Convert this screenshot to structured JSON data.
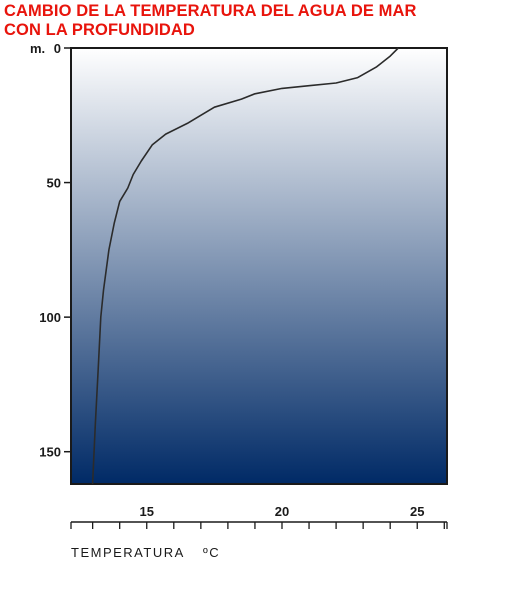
{
  "title": {
    "line1": "CAMBIO DE LA TEMPERATURA DEL AGUA DE MAR",
    "line2": "CON LA PROFUNDIDAD"
  },
  "colors": {
    "title": "#e8140c",
    "gradient_top": "#ffffff",
    "gradient_bottom": "#002a66",
    "curve": "#2b2b2b"
  },
  "chart_data": {
    "type": "line",
    "title": "CAMBIO DE LA TEMPERATURA DEL AGUA DE MAR CON LA PROFUNDIDAD",
    "xlabel": "TEMPERATURA",
    "xlabel_unit": "ºC",
    "ylabel": "m.",
    "xlim": [
      12.2,
      26.1
    ],
    "ylim": [
      0,
      162
    ],
    "y_inverted": true,
    "x_ticks": [
      15,
      20,
      25
    ],
    "x_tick_labels": [
      "15",
      "20",
      "25"
    ],
    "y_ticks": [
      0,
      50,
      100,
      150
    ],
    "y_tick_labels": [
      "0",
      "50",
      "100",
      "150"
    ],
    "grid": false,
    "series": [
      {
        "x": [
          24.3,
          24.0,
          23.5,
          22.8,
          22.0,
          21.0,
          20.0,
          19.0,
          18.5,
          17.5,
          17.0,
          16.5,
          15.7,
          15.2,
          14.8,
          14.5,
          14.3,
          14.0,
          13.8,
          13.6,
          13.4,
          13.3,
          13.2,
          13.1,
          13.0
        ],
        "y": [
          0,
          3,
          7,
          11,
          13,
          14,
          15,
          17,
          19,
          22,
          25,
          28,
          32,
          36,
          42,
          47,
          52,
          57,
          65,
          75,
          90,
          100,
          120,
          140,
          162
        ]
      }
    ]
  }
}
